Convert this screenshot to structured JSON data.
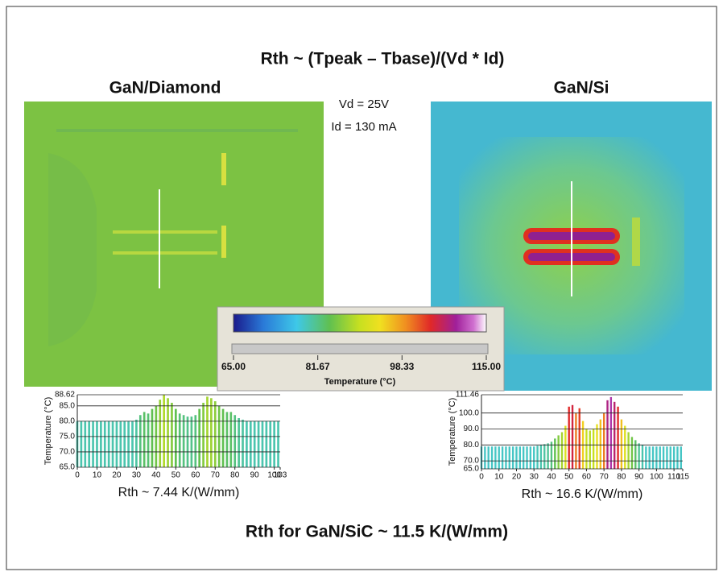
{
  "figure": {
    "title": "Rth ~ (Tpeak – Tbase)/(Vd * Id)",
    "left_label": "GaN/Diamond",
    "right_label": "GaN/Si",
    "conditions": [
      "Vd = 25V",
      "Id = 130 mA"
    ],
    "footer": "Rth for GaN/SiC ~ 11.5 K/(W/mm)"
  },
  "colorbar": {
    "label": "Temperature (°C)",
    "lim": [
      65,
      115
    ],
    "ticks": [
      {
        "value": 65,
        "label": "65.00"
      },
      {
        "value": 81.67,
        "label": "81.67"
      },
      {
        "value": 98.33,
        "label": "98.33"
      },
      {
        "value": 115,
        "label": "115.00"
      }
    ]
  },
  "chart_data": [
    {
      "type": "bar",
      "y_label": "Temperature (°C)",
      "caption": "Rth ~ 7.44 K/(W/mm)",
      "grid": true,
      "x": [
        0,
        2,
        4,
        6,
        8,
        10,
        12,
        14,
        16,
        18,
        20,
        22,
        24,
        26,
        28,
        30,
        32,
        34,
        36,
        38,
        40,
        42,
        44,
        46,
        48,
        50,
        52,
        54,
        56,
        58,
        60,
        62,
        64,
        66,
        68,
        70,
        72,
        74,
        76,
        78,
        80,
        82,
        84,
        86,
        88,
        90,
        92,
        94,
        96,
        98,
        100,
        102
      ],
      "values": [
        80,
        80,
        80,
        80,
        80,
        80,
        80,
        80,
        80,
        80,
        80,
        80,
        80,
        80,
        80,
        80.5,
        82,
        83,
        82.5,
        84,
        85,
        87,
        88.6,
        87.5,
        86,
        84,
        82.5,
        82,
        81.5,
        81.5,
        82,
        84,
        86,
        88,
        87.5,
        86.5,
        85,
        84,
        83,
        83,
        82,
        81,
        80.5,
        80,
        80,
        80,
        80,
        80,
        80,
        80,
        80,
        80
      ],
      "xlim": [
        0,
        103
      ],
      "xticks": [
        0,
        10,
        20,
        30,
        40,
        50,
        60,
        70,
        80,
        90,
        100,
        103
      ],
      "ylim": [
        65,
        88.62
      ],
      "yticks": [
        {
          "value": 65,
          "label": "65.0"
        },
        {
          "value": 70,
          "label": "70.0"
        },
        {
          "value": 75,
          "label": "75.0"
        },
        {
          "value": 80,
          "label": "80.0"
        },
        {
          "value": 85,
          "label": "85.0"
        },
        {
          "value": 88.62,
          "label": "88.62"
        }
      ]
    },
    {
      "type": "bar",
      "y_label": "Temperature (°C)",
      "caption": "Rth ~ 16.6 K/(W/mm)",
      "grid": true,
      "x": [
        0,
        2,
        4,
        6,
        8,
        10,
        12,
        14,
        16,
        18,
        20,
        22,
        24,
        26,
        28,
        30,
        32,
        34,
        36,
        38,
        40,
        42,
        44,
        46,
        48,
        50,
        52,
        54,
        56,
        58,
        60,
        62,
        64,
        66,
        68,
        70,
        72,
        74,
        76,
        78,
        80,
        82,
        84,
        86,
        88,
        90,
        92,
        94,
        96,
        98,
        100,
        102,
        104,
        106,
        108,
        110,
        112,
        114
      ],
      "values": [
        79,
        79,
        79,
        79,
        79,
        79,
        79,
        79,
        79,
        79,
        79,
        79,
        79,
        79,
        79,
        79,
        79.5,
        80,
        80.5,
        81,
        82,
        84,
        86,
        88,
        92,
        104,
        105,
        100,
        103,
        95,
        90,
        89,
        90,
        93,
        96,
        100,
        108,
        110,
        107,
        104,
        96,
        92,
        88,
        85,
        83,
        81,
        80,
        79,
        79,
        79,
        79,
        79,
        79,
        79,
        79,
        79,
        79,
        79
      ],
      "xlim": [
        0,
        115
      ],
      "xticks": [
        0,
        10,
        20,
        30,
        40,
        50,
        60,
        70,
        80,
        90,
        100,
        110,
        115
      ],
      "ylim": [
        65,
        111.46
      ],
      "yticks": [
        {
          "value": 65,
          "label": "65.0"
        },
        {
          "value": 70,
          "label": "70.0"
        },
        {
          "value": 80,
          "label": "80.0"
        },
        {
          "value": 90,
          "label": "90.0"
        },
        {
          "value": 100,
          "label": "100.0"
        },
        {
          "value": 111.46,
          "label": "111.46"
        }
      ]
    }
  ]
}
